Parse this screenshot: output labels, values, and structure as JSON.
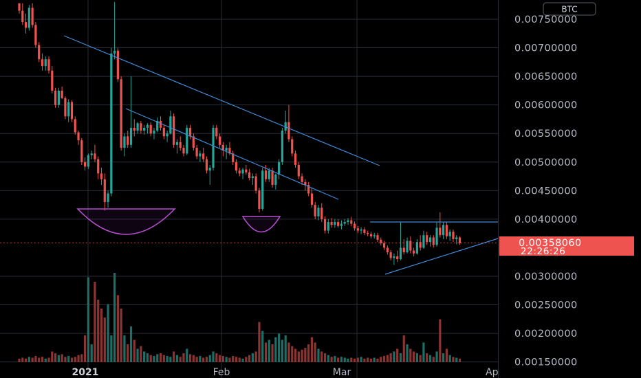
{
  "chart_data": {
    "type": "candlestick",
    "currency": "BTC",
    "colors": {
      "up": "#26a69a",
      "down": "#ef5350",
      "volume_up": "#1e6e67",
      "volume_down": "#8c3431",
      "trendline": "#3d8bd9",
      "pattern_arc": "#b64fd0",
      "current_price_bg": "#ef5350",
      "grid": "#2a2e39",
      "axis_text": "#b7bac4"
    },
    "y_axis": {
      "min": 0.0015,
      "max": 0.0078,
      "ticks": [
        "0.00750000",
        "0.00700000",
        "0.00650000",
        "0.00600000",
        "0.00550000",
        "0.00500000",
        "0.00450000",
        "0.00400000",
        "0.00300000",
        "0.00250000",
        "0.00200000",
        "0.00150000"
      ]
    },
    "x_axis": {
      "labels": [
        {
          "text": "2021",
          "bold": true
        },
        {
          "text": "Feb",
          "bold": false
        },
        {
          "text": "Mar",
          "bold": false
        },
        {
          "text": "Ap",
          "bold": false
        }
      ]
    },
    "current_price": "0.00358060",
    "countdown": "22:26:26",
    "candles": [
      [
        0.00778,
        0.00778,
        0.0076,
        0.00765
      ],
      [
        0.00765,
        0.00778,
        0.0074,
        0.00745
      ],
      [
        0.00745,
        0.0076,
        0.00725,
        0.00735
      ],
      [
        0.00735,
        0.00775,
        0.0073,
        0.0077
      ],
      [
        0.0077,
        0.00778,
        0.00735,
        0.0074
      ],
      [
        0.0074,
        0.00745,
        0.007,
        0.00705
      ],
      [
        0.00705,
        0.0071,
        0.00675,
        0.0068
      ],
      [
        0.0068,
        0.0069,
        0.0066,
        0.00668
      ],
      [
        0.00668,
        0.00685,
        0.0066,
        0.0068
      ],
      [
        0.0068,
        0.00685,
        0.00655,
        0.0066
      ],
      [
        0.0066,
        0.00668,
        0.0062,
        0.00625
      ],
      [
        0.00625,
        0.0063,
        0.00595,
        0.006
      ],
      [
        0.006,
        0.0063,
        0.00595,
        0.00625
      ],
      [
        0.00625,
        0.00632,
        0.0061,
        0.00612
      ],
      [
        0.00612,
        0.00615,
        0.00575,
        0.0058
      ],
      [
        0.0058,
        0.0061,
        0.0057,
        0.00605
      ],
      [
        0.00605,
        0.00608,
        0.0057,
        0.00575
      ],
      [
        0.00575,
        0.0058,
        0.00548,
        0.00552
      ],
      [
        0.00552,
        0.00555,
        0.0053,
        0.00538
      ],
      [
        0.00538,
        0.00542,
        0.00495,
        0.005
      ],
      [
        0.005,
        0.00508,
        0.00485,
        0.00492
      ],
      [
        0.00492,
        0.00515,
        0.00488,
        0.00512
      ],
      [
        0.00512,
        0.0052,
        0.00505,
        0.00515
      ],
      [
        0.00515,
        0.0053,
        0.005,
        0.00505
      ],
      [
        0.00505,
        0.0051,
        0.0047,
        0.0048
      ],
      [
        0.0048,
        0.0049,
        0.0046,
        0.0047
      ],
      [
        0.0047,
        0.0048,
        0.00415,
        0.0043
      ],
      [
        0.0043,
        0.0045,
        0.0042,
        0.00445
      ],
      [
        0.00445,
        0.007,
        0.0044,
        0.0069
      ],
      [
        0.0069,
        0.0078,
        0.0068,
        0.00695
      ],
      [
        0.00695,
        0.007,
        0.0064,
        0.00645
      ],
      [
        0.00645,
        0.0065,
        0.0052,
        0.00525
      ],
      [
        0.00525,
        0.0055,
        0.0051,
        0.00545
      ],
      [
        0.00545,
        0.00555,
        0.00525,
        0.0053
      ],
      [
        0.0053,
        0.0065,
        0.00525,
        0.0056
      ],
      [
        0.0056,
        0.00575,
        0.00545,
        0.00555
      ],
      [
        0.00555,
        0.0057,
        0.0055,
        0.00568
      ],
      [
        0.00568,
        0.00572,
        0.0055,
        0.00555
      ],
      [
        0.00555,
        0.00565,
        0.00548,
        0.0056
      ],
      [
        0.0056,
        0.00568,
        0.0055,
        0.00565
      ],
      [
        0.00565,
        0.0057,
        0.00545,
        0.0055
      ],
      [
        0.0055,
        0.0056,
        0.0054,
        0.00555
      ],
      [
        0.00555,
        0.00578,
        0.00552,
        0.00572
      ],
      [
        0.00572,
        0.0058,
        0.00555,
        0.0056
      ],
      [
        0.0056,
        0.00565,
        0.0054,
        0.00545
      ],
      [
        0.00545,
        0.00555,
        0.00535,
        0.0055
      ],
      [
        0.0055,
        0.0059,
        0.00548,
        0.0058
      ],
      [
        0.0058,
        0.00585,
        0.00525,
        0.0053
      ],
      [
        0.0053,
        0.0054,
        0.00515,
        0.00535
      ],
      [
        0.00535,
        0.00545,
        0.0052,
        0.00525
      ],
      [
        0.00525,
        0.0053,
        0.0051,
        0.00515
      ],
      [
        0.00515,
        0.00565,
        0.00512,
        0.0056
      ],
      [
        0.0056,
        0.00565,
        0.0054,
        0.00545
      ],
      [
        0.00545,
        0.0055,
        0.0052,
        0.00525
      ],
      [
        0.00525,
        0.0053,
        0.00505,
        0.0051
      ],
      [
        0.0051,
        0.0052,
        0.005,
        0.00515
      ],
      [
        0.00515,
        0.00525,
        0.005,
        0.00505
      ],
      [
        0.00505,
        0.0051,
        0.0048,
        0.00485
      ],
      [
        0.00485,
        0.00495,
        0.0046,
        0.0049
      ],
      [
        0.0049,
        0.00565,
        0.00485,
        0.0056
      ],
      [
        0.0056,
        0.00565,
        0.0054,
        0.00545
      ],
      [
        0.00545,
        0.0055,
        0.00525,
        0.0053
      ],
      [
        0.0053,
        0.00535,
        0.0051,
        0.0052
      ],
      [
        0.0052,
        0.0053,
        0.00505,
        0.00525
      ],
      [
        0.00525,
        0.00535,
        0.00512,
        0.00515
      ],
      [
        0.00515,
        0.0052,
        0.00495,
        0.005
      ],
      [
        0.005,
        0.00505,
        0.0048,
        0.00485
      ],
      [
        0.00485,
        0.0049,
        0.00475,
        0.0048
      ],
      [
        0.0048,
        0.0049,
        0.0047,
        0.00487
      ],
      [
        0.00487,
        0.00495,
        0.00478,
        0.00482
      ],
      [
        0.00482,
        0.00488,
        0.00468,
        0.00472
      ],
      [
        0.00472,
        0.0048,
        0.0046,
        0.00475
      ],
      [
        0.00475,
        0.0048,
        0.00445,
        0.0045
      ],
      [
        0.0045,
        0.00455,
        0.00412,
        0.00418
      ],
      [
        0.00418,
        0.0049,
        0.00415,
        0.00485
      ],
      [
        0.00485,
        0.00495,
        0.00465,
        0.0047
      ],
      [
        0.0047,
        0.0049,
        0.00465,
        0.00485
      ],
      [
        0.00485,
        0.0049,
        0.00455,
        0.0046
      ],
      [
        0.0046,
        0.0048,
        0.00452,
        0.00478
      ],
      [
        0.00478,
        0.00505,
        0.0047,
        0.005
      ],
      [
        0.005,
        0.0056,
        0.00495,
        0.00555
      ],
      [
        0.00555,
        0.0059,
        0.0055,
        0.0057
      ],
      [
        0.0057,
        0.006,
        0.00535,
        0.0054
      ],
      [
        0.0054,
        0.00545,
        0.0051,
        0.00515
      ],
      [
        0.00515,
        0.0052,
        0.0049,
        0.00495
      ],
      [
        0.00495,
        0.005,
        0.0047,
        0.00475
      ],
      [
        0.00475,
        0.0048,
        0.0046,
        0.00465
      ],
      [
        0.00465,
        0.0047,
        0.0045,
        0.0046
      ],
      [
        0.0046,
        0.00465,
        0.0044,
        0.00445
      ],
      [
        0.00445,
        0.00455,
        0.0042,
        0.00425
      ],
      [
        0.00425,
        0.0043,
        0.004,
        0.00405
      ],
      [
        0.00405,
        0.00425,
        0.00398,
        0.0042
      ],
      [
        0.0042,
        0.00428,
        0.00395,
        0.004
      ],
      [
        0.004,
        0.00405,
        0.00375,
        0.0038
      ],
      [
        0.0038,
        0.004,
        0.00375,
        0.00395
      ],
      [
        0.00395,
        0.00402,
        0.00385,
        0.0039
      ],
      [
        0.0039,
        0.004,
        0.00385,
        0.00395
      ],
      [
        0.00395,
        0.004,
        0.00385,
        0.00388
      ],
      [
        0.00388,
        0.00398,
        0.00382,
        0.00392
      ],
      [
        0.00392,
        0.004,
        0.00388,
        0.00395
      ],
      [
        0.00395,
        0.00402,
        0.0039,
        0.00398
      ],
      [
        0.00398,
        0.00404,
        0.00388,
        0.00392
      ],
      [
        0.00392,
        0.00396,
        0.0038,
        0.00384
      ],
      [
        0.00384,
        0.00388,
        0.00376,
        0.0038
      ],
      [
        0.0038,
        0.00386,
        0.00374,
        0.00382
      ],
      [
        0.00382,
        0.00386,
        0.00372,
        0.00376
      ],
      [
        0.00376,
        0.0038,
        0.0037,
        0.00374
      ],
      [
        0.00374,
        0.00378,
        0.00366,
        0.0037
      ],
      [
        0.0037,
        0.00376,
        0.00366,
        0.00372
      ],
      [
        0.00372,
        0.00376,
        0.0036,
        0.00364
      ],
      [
        0.00364,
        0.00368,
        0.00354,
        0.00358
      ],
      [
        0.00358,
        0.00362,
        0.00346,
        0.0035
      ],
      [
        0.0035,
        0.00354,
        0.00338,
        0.00342
      ],
      [
        0.00342,
        0.00346,
        0.00328,
        0.00332
      ],
      [
        0.00332,
        0.0034,
        0.0032,
        0.00335
      ],
      [
        0.00335,
        0.00345,
        0.00325,
        0.0033
      ],
      [
        0.0033,
        0.00395,
        0.00328,
        0.0035
      ],
      [
        0.0035,
        0.00365,
        0.00338,
        0.00342
      ],
      [
        0.00342,
        0.00368,
        0.0034,
        0.00362
      ],
      [
        0.00362,
        0.0037,
        0.0034,
        0.00345
      ],
      [
        0.00345,
        0.0035,
        0.00335,
        0.0034
      ],
      [
        0.0034,
        0.00365,
        0.00338,
        0.0036
      ],
      [
        0.0036,
        0.00372,
        0.00345,
        0.0035
      ],
      [
        0.0035,
        0.0038,
        0.00348,
        0.00372
      ],
      [
        0.00372,
        0.00378,
        0.00355,
        0.0036
      ],
      [
        0.0036,
        0.00372,
        0.00352,
        0.00368
      ],
      [
        0.00368,
        0.00372,
        0.0035,
        0.00355
      ],
      [
        0.00355,
        0.00395,
        0.00352,
        0.00385
      ],
      [
        0.00385,
        0.00412,
        0.00368,
        0.00372
      ],
      [
        0.00372,
        0.00395,
        0.00365,
        0.0039
      ],
      [
        0.0039,
        0.00395,
        0.00365,
        0.0037
      ],
      [
        0.0037,
        0.00382,
        0.00362,
        0.00378
      ],
      [
        0.00378,
        0.00382,
        0.0036,
        0.00365
      ],
      [
        0.00365,
        0.00372,
        0.00356,
        0.00368
      ],
      [
        0.00368,
        0.0037,
        0.00355,
        0.00358
      ]
    ],
    "volumes": [
      0.04,
      0.05,
      0.04,
      0.06,
      0.05,
      0.07,
      0.05,
      0.06,
      0.04,
      0.05,
      0.12,
      0.1,
      0.08,
      0.09,
      0.06,
      0.07,
      0.05,
      0.06,
      0.08,
      0.09,
      0.3,
      0.95,
      0.2,
      0.9,
      0.7,
      0.6,
      0.5,
      0.65,
      0.3,
      1.0,
      0.75,
      0.6,
      0.3,
      0.2,
      0.4,
      0.25,
      0.15,
      0.18,
      0.12,
      0.1,
      0.08,
      0.07,
      0.09,
      0.1,
      0.08,
      0.07,
      0.06,
      0.12,
      0.08,
      0.06,
      0.1,
      0.15,
      0.09,
      0.08,
      0.06,
      0.07,
      0.05,
      0.06,
      0.08,
      0.12,
      0.1,
      0.08,
      0.07,
      0.06,
      0.05,
      0.07,
      0.06,
      0.05,
      0.04,
      0.06,
      0.08,
      0.1,
      0.12,
      0.45,
      0.35,
      0.22,
      0.25,
      0.2,
      0.28,
      0.32,
      0.25,
      0.3,
      0.22,
      0.18,
      0.15,
      0.12,
      0.14,
      0.16,
      0.2,
      0.28,
      0.22,
      0.15,
      0.12,
      0.1,
      0.08,
      0.06,
      0.07,
      0.05,
      0.06,
      0.05,
      0.04,
      0.05,
      0.04,
      0.05,
      0.06,
      0.04,
      0.05,
      0.04,
      0.05,
      0.04,
      0.06,
      0.07,
      0.08,
      0.1,
      0.12,
      0.15,
      0.1,
      0.3,
      0.2,
      0.15,
      0.12,
      0.1,
      0.08,
      0.22,
      0.1,
      0.08,
      0.06,
      0.12,
      0.48,
      0.1,
      0.15,
      0.08,
      0.06,
      0.05,
      0.04
    ]
  }
}
